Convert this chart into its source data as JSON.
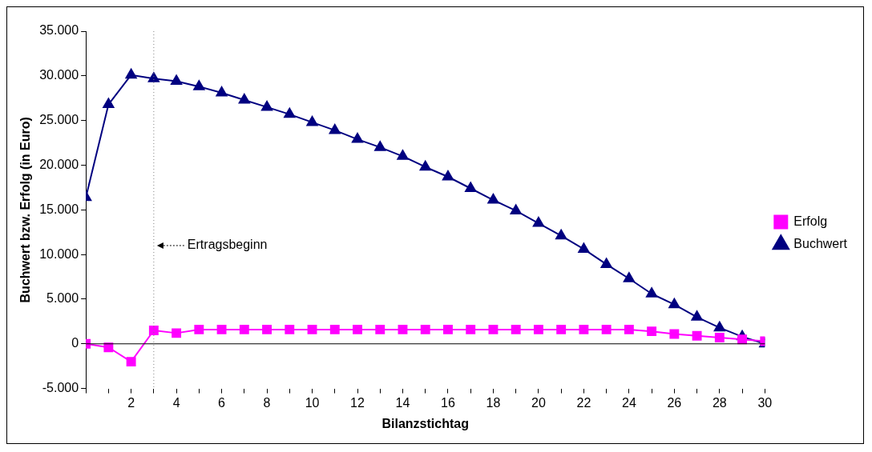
{
  "chart_data": {
    "type": "line",
    "xlabel": "Bilanzstichtag",
    "ylabel": "Buchwert bzw. Erfolg (in Euro)",
    "x": [
      0,
      1,
      2,
      3,
      4,
      5,
      6,
      7,
      8,
      9,
      10,
      11,
      12,
      13,
      14,
      15,
      16,
      17,
      18,
      19,
      20,
      21,
      22,
      23,
      24,
      25,
      26,
      27,
      28,
      29,
      30
    ],
    "series": [
      {
        "name": "Buchwert",
        "color": "#000080",
        "marker": "triangle",
        "values": [
          16400,
          26800,
          30100,
          29700,
          29400,
          28800,
          28100,
          27300,
          26500,
          25700,
          24800,
          23900,
          22900,
          22000,
          21000,
          19800,
          18700,
          17400,
          16100,
          14900,
          13500,
          12100,
          10600,
          8900,
          7300,
          5600,
          4400,
          3000,
          1800,
          800,
          0
        ]
      },
      {
        "name": "Erfolg",
        "color": "#ff00ff",
        "marker": "square",
        "values": [
          0,
          -400,
          -2000,
          1500,
          1200,
          1600,
          1600,
          1600,
          1600,
          1600,
          1600,
          1600,
          1600,
          1600,
          1600,
          1600,
          1600,
          1600,
          1600,
          1600,
          1600,
          1600,
          1600,
          1600,
          1600,
          1400,
          1100,
          900,
          700,
          500,
          300
        ]
      }
    ],
    "xlim": [
      0,
      30
    ],
    "xticks": [
      {
        "value": 0,
        "label": null
      },
      {
        "value": 1,
        "label": null
      },
      2,
      {
        "value": 3,
        "label": null
      },
      4,
      {
        "value": 5,
        "label": null
      },
      6,
      {
        "value": 7,
        "label": null
      },
      8,
      {
        "value": 9,
        "label": null
      },
      10,
      {
        "value": 11,
        "label": null
      },
      12,
      {
        "value": 13,
        "label": null
      },
      14,
      {
        "value": 15,
        "label": null
      },
      16,
      {
        "value": 17,
        "label": null
      },
      18,
      {
        "value": 19,
        "label": null
      },
      20,
      {
        "value": 21,
        "label": null
      },
      22,
      {
        "value": 23,
        "label": null
      },
      24,
      {
        "value": 25,
        "label": null
      },
      26,
      {
        "value": 27,
        "label": null
      },
      28,
      {
        "value": 29,
        "label": null
      },
      30
    ],
    "ylim": [
      -5000,
      35000
    ],
    "yticks": [
      {
        "value": -5000,
        "label": "-5.000"
      },
      {
        "value": 0,
        "label": "0"
      },
      {
        "value": 5000,
        "label": "5.000"
      },
      {
        "value": 10000,
        "label": "10.000"
      },
      {
        "value": 15000,
        "label": "15.000"
      },
      {
        "value": 20000,
        "label": "20.000"
      },
      {
        "value": 25000,
        "label": "25.000"
      },
      {
        "value": 30000,
        "label": "30.000"
      },
      {
        "value": 35000,
        "label": "35.000"
      }
    ],
    "grid": false,
    "legend": "right",
    "line_style": "solid",
    "ref_lines": [
      {
        "axis": "x",
        "value": 3,
        "label": "Ertragsbeginn",
        "color": "#808080",
        "line_style": "dotted"
      }
    ]
  }
}
